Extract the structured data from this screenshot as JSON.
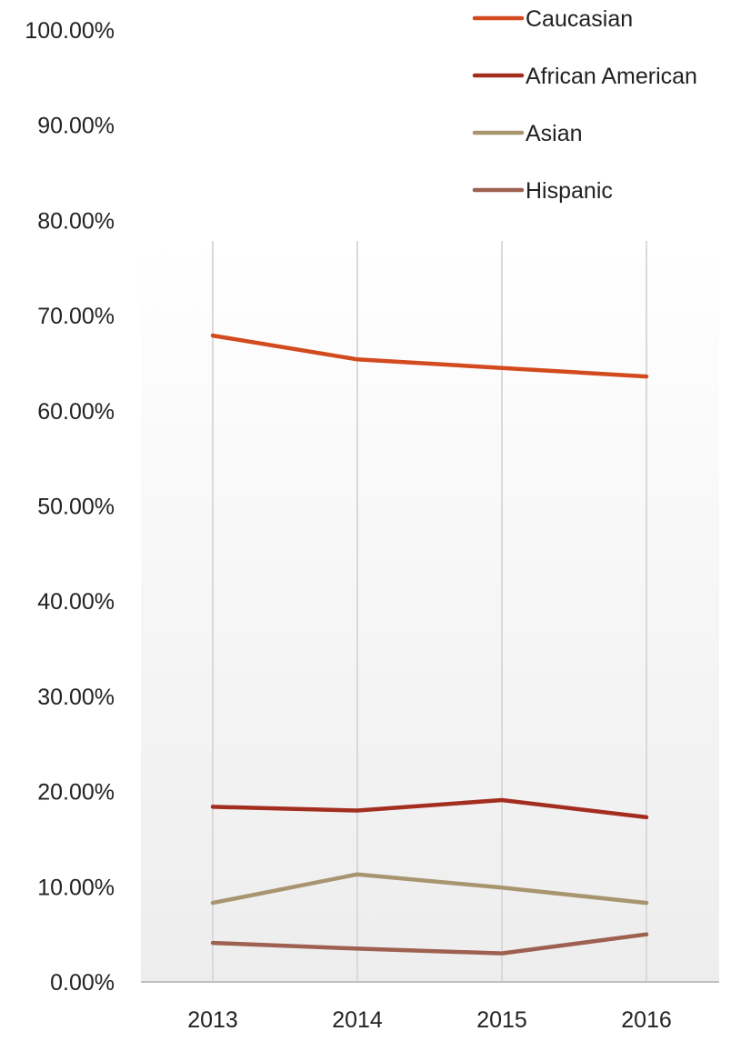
{
  "chart_data": {
    "type": "line",
    "x": [
      "2013",
      "2014",
      "2015",
      "2016"
    ],
    "ylim": [
      0,
      1
    ],
    "yticks": [
      "0.00%",
      "10.00%",
      "20.00%",
      "30.00%",
      "40.00%",
      "50.00%",
      "60.00%",
      "70.00%",
      "80.00%",
      "90.00%",
      "100.00%"
    ],
    "grid": "vertical",
    "legend": "top-right",
    "series": [
      {
        "name": "Caucasian",
        "color": "#d24a1e",
        "values": [
          0.679,
          0.654,
          0.645,
          0.636
        ]
      },
      {
        "name": "African American",
        "color": "#a32d1e",
        "values": [
          0.184,
          0.18,
          0.191,
          0.173
        ]
      },
      {
        "name": "Asian",
        "color": "#a89570",
        "values": [
          0.083,
          0.113,
          0.099,
          0.083
        ]
      },
      {
        "name": "Hispanic",
        "color": "#9e6050",
        "values": [
          0.041,
          0.035,
          0.03,
          0.05
        ]
      }
    ]
  }
}
